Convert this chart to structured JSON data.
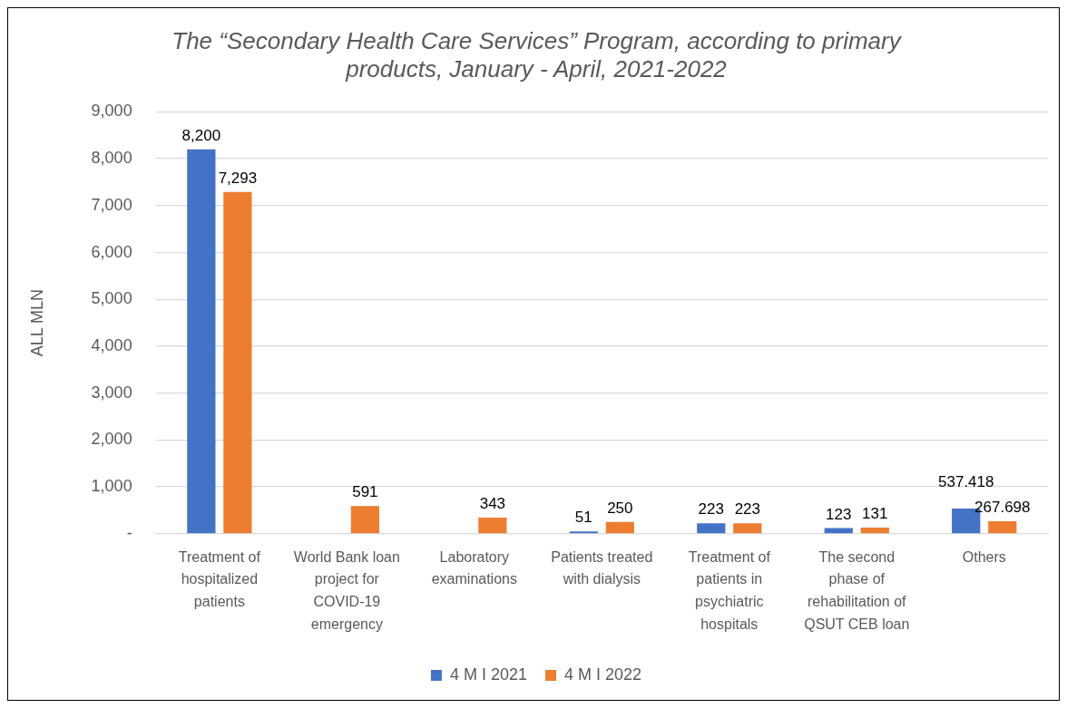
{
  "chart_data": {
    "type": "bar",
    "title": "The “Secondary Health Care Services” Program, according to primary products, January - April, 2021-2022",
    "ylabel": "ALL MLN",
    "categories": [
      "Treatment of hospitalized patients",
      "World Bank loan project for COVID-19 emergency",
      "Laboratory examinations",
      "Patients treated with dialysis",
      "Treatment of patients in psychiatric hospitals",
      "The second phase of rehabilitation of QSUT CEB loan",
      "Others"
    ],
    "series": [
      {
        "name": "4 M I 2021",
        "color": "#4472c4",
        "values": [
          8200,
          null,
          null,
          51,
          223,
          123,
          537.418
        ],
        "value_labels": [
          "8,200",
          null,
          null,
          "51",
          "223",
          "123",
          "537.418"
        ]
      },
      {
        "name": "4 M I 2022",
        "color": "#ed7d31",
        "values": [
          7293,
          591,
          343,
          250,
          223,
          131,
          267.698
        ],
        "value_labels": [
          "7,293",
          "591",
          "343",
          "250",
          "223",
          "131",
          "267.698"
        ]
      }
    ],
    "ylim": [
      0,
      9000
    ],
    "yticks": [
      {
        "value": 0,
        "label": "-"
      },
      {
        "value": 1000,
        "label": "1,000"
      },
      {
        "value": 2000,
        "label": "2,000"
      },
      {
        "value": 3000,
        "label": "3,000"
      },
      {
        "value": 4000,
        "label": "4,000"
      },
      {
        "value": 5000,
        "label": "5,000"
      },
      {
        "value": 6000,
        "label": "6,000"
      },
      {
        "value": 7000,
        "label": "7,000"
      },
      {
        "value": 8000,
        "label": "8,000"
      },
      {
        "value": 9000,
        "label": "9,000"
      }
    ],
    "grid": "y",
    "legend": "bottom"
  }
}
